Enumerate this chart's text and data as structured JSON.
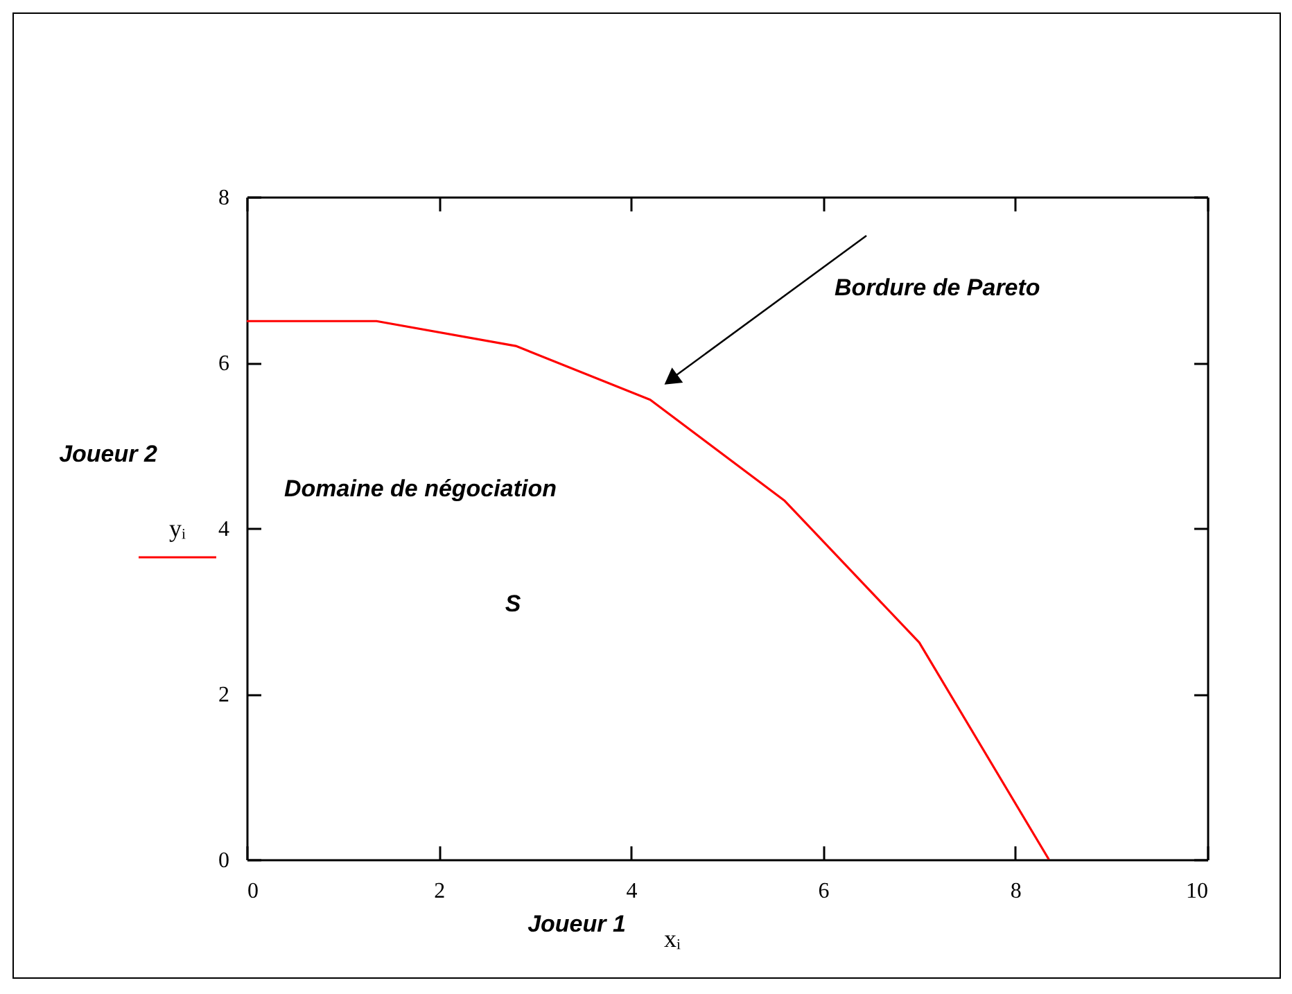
{
  "chart_data": {
    "type": "line",
    "xlabel": "Joueur 1",
    "ylabel": "Joueur 2",
    "x": [
      0,
      1.35,
      2.8,
      4.2,
      5.6,
      7,
      8.35
    ],
    "series": [
      {
        "name": "yᵢ",
        "color": "#ff0000",
        "values": [
          6.5,
          6.5,
          6.2,
          5.55,
          4.33,
          2.62,
          0
        ]
      }
    ],
    "xlim": [
      0,
      10
    ],
    "ylim": [
      0,
      8
    ],
    "xticks": [
      0,
      2,
      4,
      6,
      8,
      10
    ],
    "yticks": [
      0,
      2,
      4,
      6,
      8
    ],
    "legend": "left",
    "grid": false,
    "marker": "none",
    "line_style": "solid",
    "annotations": [
      "Bordure de Pareto",
      "Domaine de négociation",
      "S",
      "xᵢ"
    ]
  }
}
